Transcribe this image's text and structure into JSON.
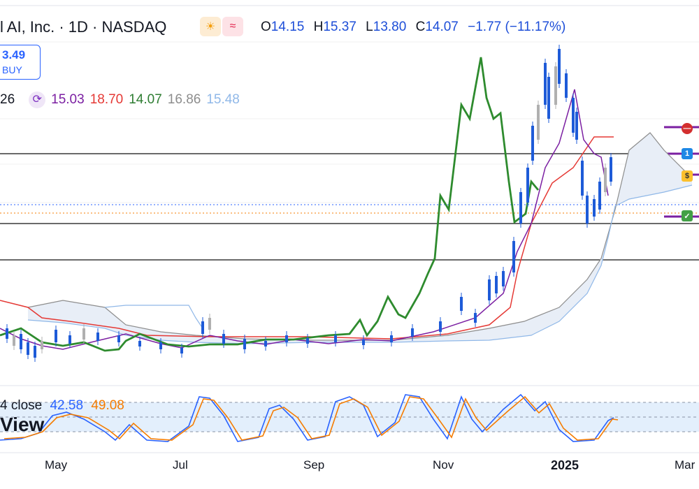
{
  "header": {
    "symbol_title": "l AI, Inc. · 1D · NASDAQ",
    "badge_sun": "☀",
    "badge_wave": "≈",
    "open_label": "O",
    "open_value": "14.15",
    "high_label": "H",
    "high_value": "15.37",
    "low_label": "L",
    "low_value": "13.80",
    "close_label": "C",
    "close_value": "14.07",
    "change": "−1.77 (−11.17%)"
  },
  "buy_box": {
    "price": "3.49",
    "label": "BUY"
  },
  "indicator_row": {
    "prefix": "26",
    "values": [
      {
        "text": "15.03",
        "color": "#7b1fa2"
      },
      {
        "text": "18.70",
        "color": "#e53935"
      },
      {
        "text": "14.07",
        "color": "#2e7d32"
      },
      {
        "text": "16.86",
        "color": "#8d8d8d"
      },
      {
        "text": "15.48",
        "color": "#90b8e8"
      }
    ]
  },
  "stoch": {
    "label": "4 close",
    "k_value": "42.58",
    "k_color": "#2962ff",
    "d_value": "49.08",
    "d_color": "#f57c00"
  },
  "watermark": "View",
  "x_axis": {
    "labels": [
      "May",
      "Jul",
      "Sep",
      "Nov",
      "2025",
      "Mar"
    ]
  },
  "colors": {
    "lagging_span": "#2e8b2e",
    "conversion": "#7b1fa2",
    "base": "#e53935",
    "cloud": "#e8eef7",
    "candle_up": "#1e5bd8",
    "candle_down": "#b0b0b0"
  },
  "right_markers": [
    "no-entry-icon",
    "info-icon",
    "money-bag-icon",
    "check-icon"
  ]
}
